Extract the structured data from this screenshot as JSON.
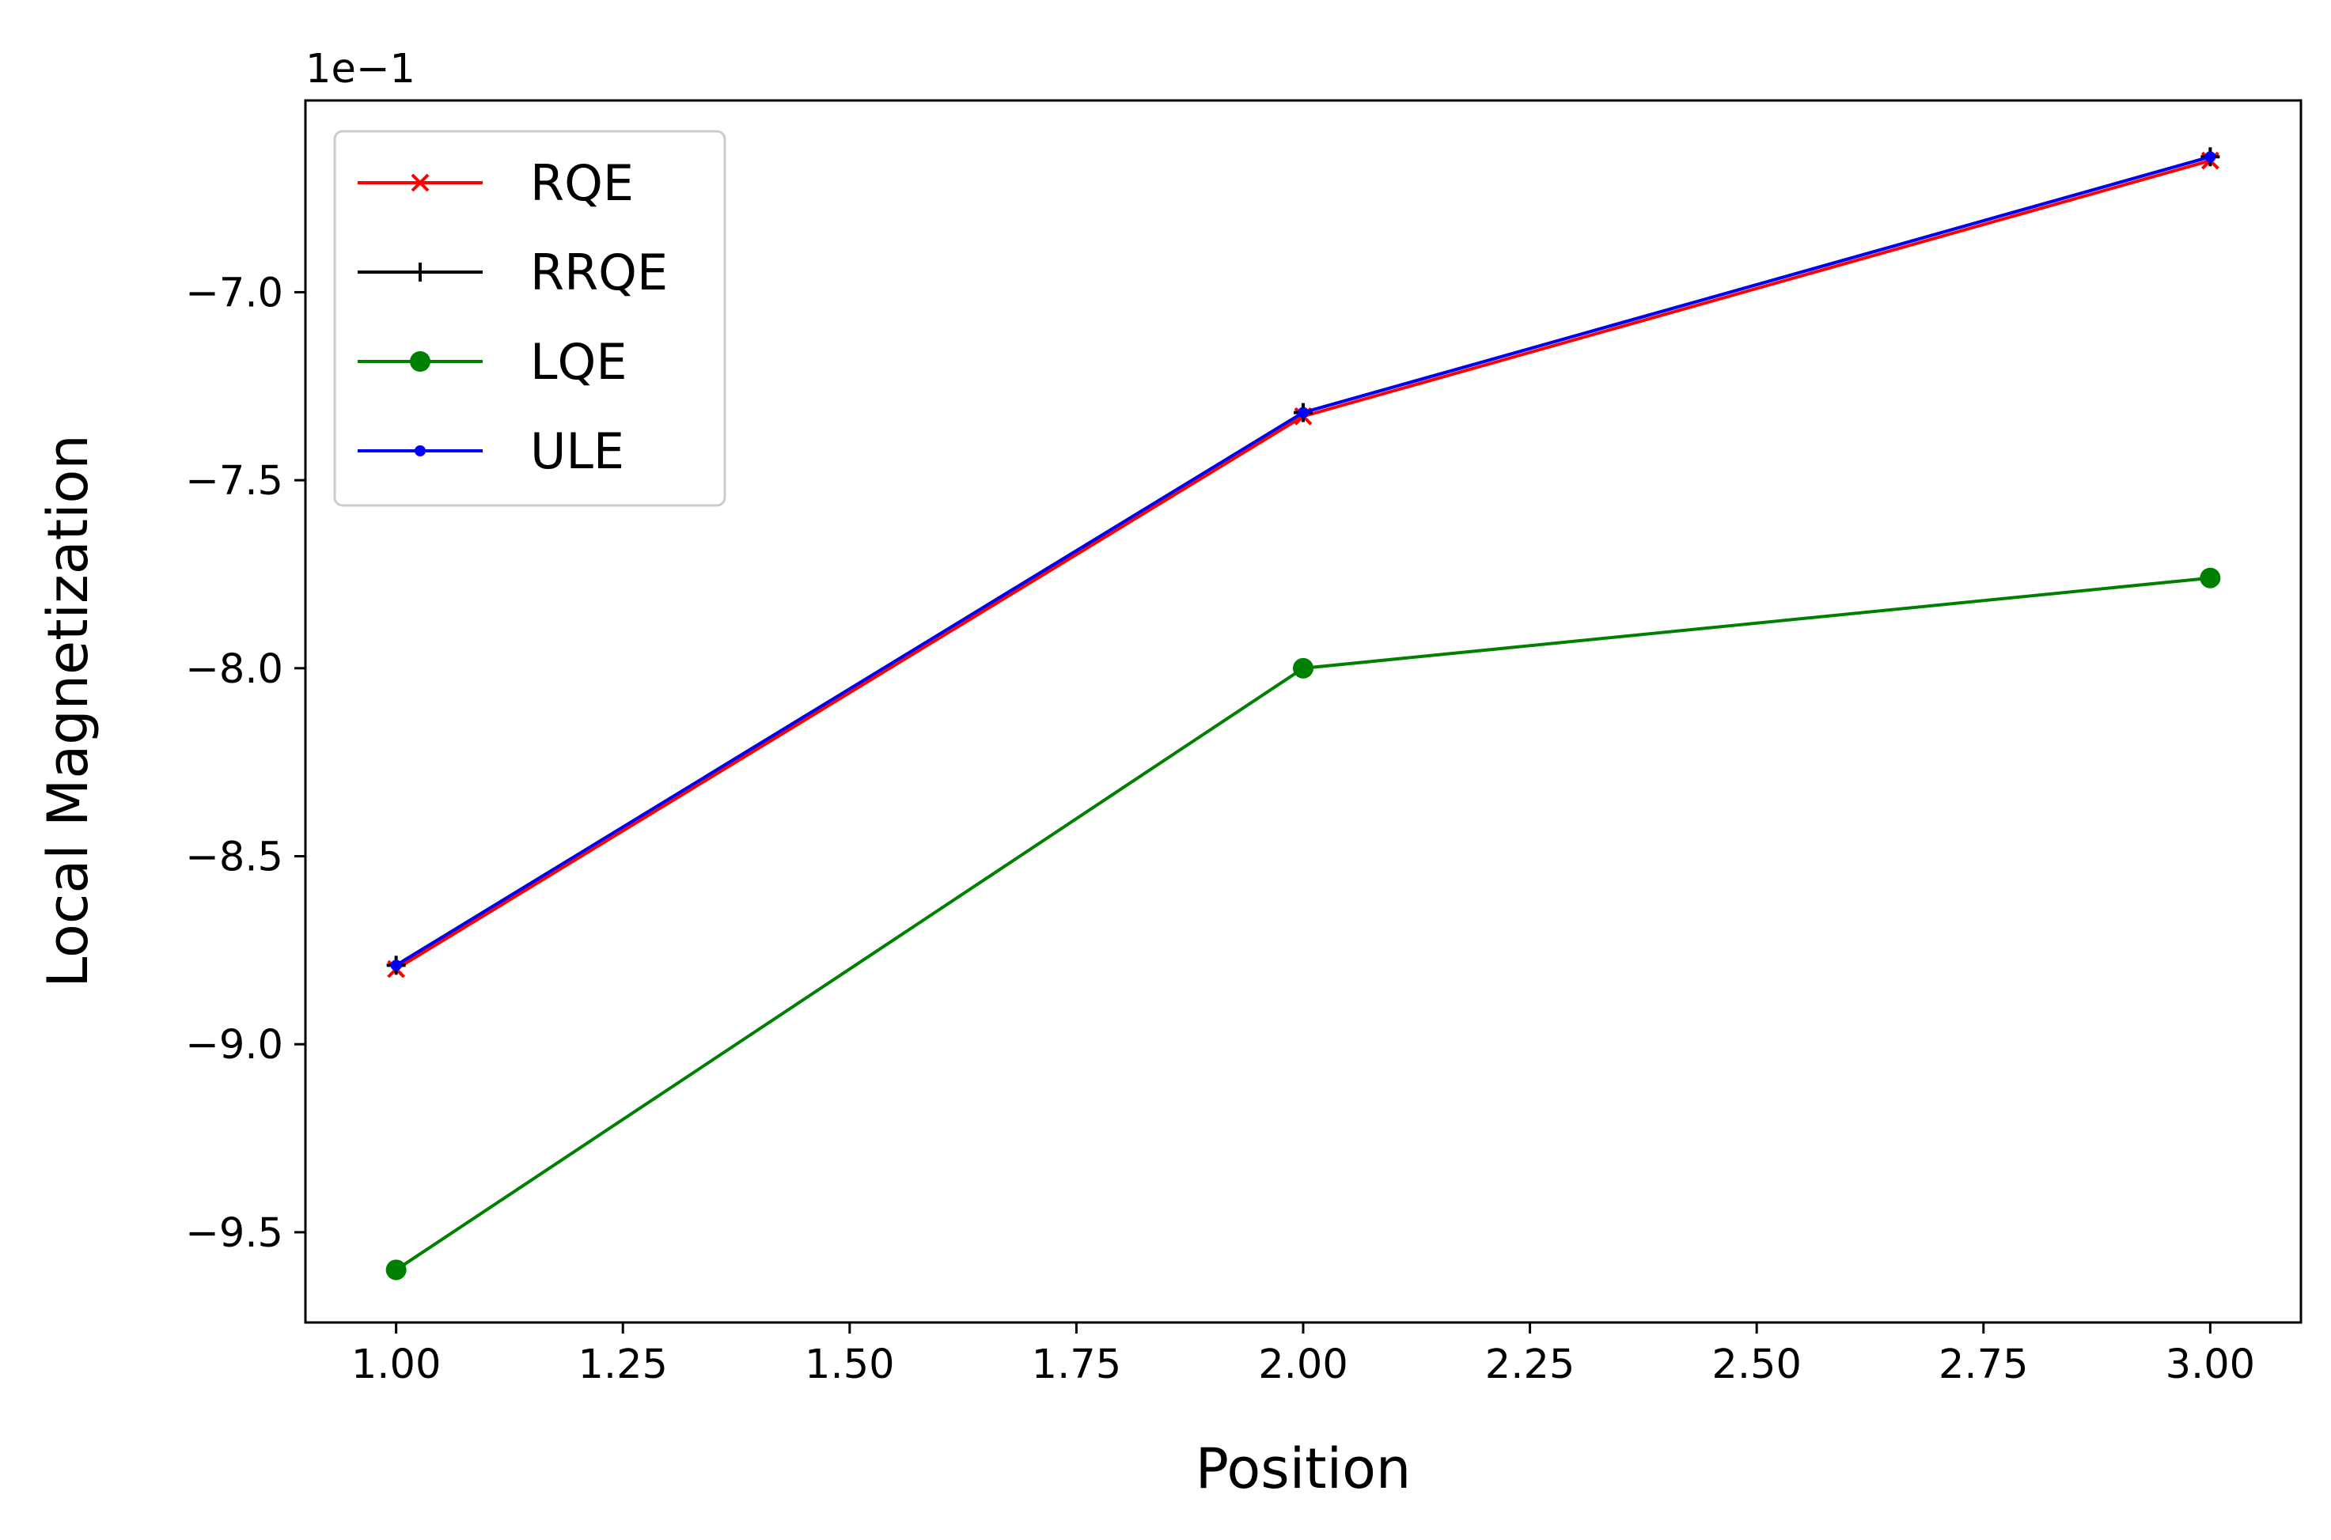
{
  "chart_data": {
    "type": "line",
    "title": "",
    "xlabel": "Position",
    "ylabel": "Local Magnetization",
    "y_offset_label": "1e−1",
    "x": [
      1,
      2,
      3
    ],
    "xlim": [
      0.9,
      3.1
    ],
    "ylim": [
      -9.74,
      -6.49
    ],
    "xticks": [
      1.0,
      1.25,
      1.5,
      1.75,
      2.0,
      2.25,
      2.5,
      2.75,
      3.0
    ],
    "xtick_labels": [
      "1.00",
      "1.25",
      "1.50",
      "1.75",
      "2.00",
      "2.25",
      "2.50",
      "2.75",
      "3.00"
    ],
    "yticks": [
      -7.0,
      -7.5,
      -8.0,
      -8.5,
      -9.0,
      -9.5
    ],
    "ytick_labels": [
      "−7.0",
      "−7.5",
      "−8.0",
      "−8.5",
      "−9.0",
      "−9.5"
    ],
    "grid": false,
    "legend_position": "top-left",
    "series": [
      {
        "name": "RQE",
        "values": [
          -8.8,
          -7.33,
          -6.65
        ],
        "color": "#ff0000",
        "marker": "x"
      },
      {
        "name": "RRQE",
        "values": [
          -8.79,
          -7.32,
          -6.64
        ],
        "color": "#000000",
        "marker": "+"
      },
      {
        "name": "LQE",
        "values": [
          -9.6,
          -8.0,
          -7.76
        ],
        "color": "#008000",
        "marker": "o"
      },
      {
        "name": "ULE",
        "values": [
          -8.79,
          -7.32,
          -6.64
        ],
        "color": "#0000ff",
        "marker": "."
      }
    ]
  }
}
